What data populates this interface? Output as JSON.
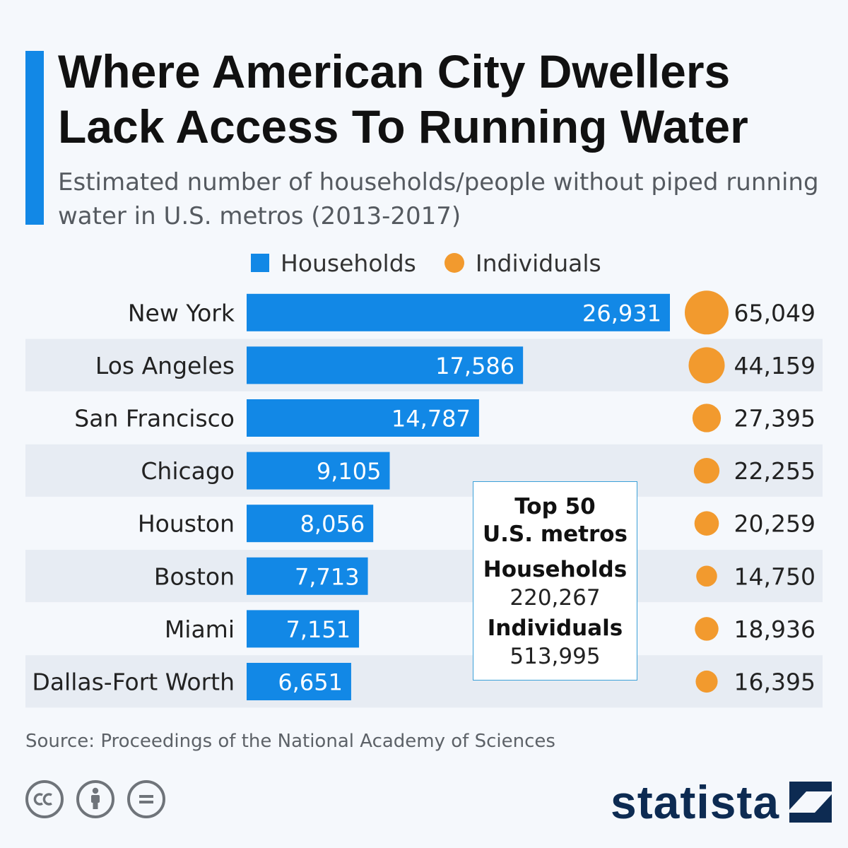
{
  "title": "Where American City Dwellers Lack Access To Running Water",
  "subtitle": "Estimated number of households/people without piped running water in U.S. metros (2013-2017)",
  "colors": {
    "accent": "#1288e6",
    "bar": "#1288e6",
    "dot": "#f29a2e",
    "row_alt": "#e7ecf3"
  },
  "legend": {
    "households": "Households",
    "individuals": "Individuals"
  },
  "chart_data": {
    "type": "bar",
    "orientation": "horizontal",
    "categories": [
      "New York",
      "Los Angeles",
      "San Francisco",
      "Chicago",
      "Houston",
      "Boston",
      "Miami",
      "Dallas-Fort Worth"
    ],
    "series": [
      {
        "name": "Households",
        "values": [
          26931,
          17586,
          14787,
          9105,
          8056,
          7713,
          7151,
          6651
        ],
        "mark": "bar"
      },
      {
        "name": "Individuals",
        "values": [
          65049,
          44159,
          27395,
          22255,
          20259,
          14750,
          18936,
          16395
        ],
        "mark": "bubble"
      }
    ],
    "value_labels_households": [
      "26,931",
      "17,586",
      "14,787",
      "9,105",
      "8,056",
      "7,713",
      "7,151",
      "6,651"
    ],
    "value_labels_individuals": [
      "65,049",
      "44,159",
      "27,395",
      "22,255",
      "20,259",
      "14,750",
      "18,936",
      "16,395"
    ],
    "legend_position": "top"
  },
  "summary": {
    "heading_line1": "Top 50",
    "heading_line2": "U.S. metros",
    "households_label": "Households",
    "households_value": "220,267",
    "individuals_label": "Individuals",
    "individuals_value": "513,995"
  },
  "source": "Source: Proceedings of the National Academy of Sciences",
  "license_icons": [
    "cc-icon",
    "attribution-icon",
    "no-derivatives-icon"
  ],
  "logo": "statista"
}
